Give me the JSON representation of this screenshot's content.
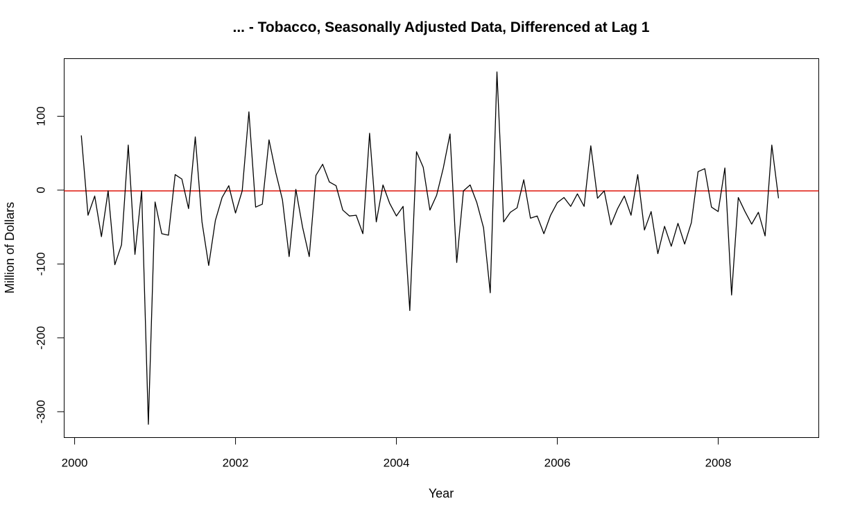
{
  "chart_data": {
    "type": "line",
    "title": "... - Tobacco, Seasonally Adjusted Data, Differenced at Lag 1",
    "xlabel": "Year",
    "ylabel": "Million of Dollars",
    "xlim": [
      1999.87,
      2009.25
    ],
    "ylim": [
      -335,
      178
    ],
    "x_ticks": [
      2000,
      2002,
      2004,
      2006,
      2008
    ],
    "y_ticks": [
      100,
      0,
      -100,
      -200,
      -300
    ],
    "x_tick_labels": [
      "2000",
      "2002",
      "2004",
      "2006",
      "2008"
    ],
    "y_tick_labels": [
      "100",
      "0",
      "-100",
      "-200",
      "-300"
    ],
    "grid": false,
    "legend": "none",
    "x_start": 2000.0833,
    "x_step": 0.08333,
    "series": [
      {
        "color": "#000000",
        "values": [
          74,
          -34,
          -8,
          -63,
          -1,
          -101,
          -74,
          61,
          -87,
          -1,
          -317,
          -16,
          -59,
          -61,
          21,
          15,
          -25,
          72,
          -43,
          -102,
          -41,
          -10,
          6,
          -31,
          -1,
          106,
          -23,
          -19,
          68,
          24,
          -13,
          -90,
          1,
          -50,
          -90,
          20,
          35,
          11,
          6,
          -27,
          -35,
          -34,
          -59,
          77,
          -43,
          7,
          -18,
          -35,
          -22,
          -163,
          52,
          31,
          -27,
          -7,
          30,
          76,
          -98,
          -1,
          7,
          -17,
          -51,
          -139,
          160,
          -43,
          -30,
          -24,
          14,
          -38,
          -35,
          -59,
          -34,
          -17,
          -10,
          -22,
          -5,
          -22,
          60,
          -11,
          -1,
          -47,
          -25,
          -8,
          -34,
          21,
          -54,
          -29,
          -86,
          -49,
          -76,
          -45,
          -73,
          -44,
          25,
          29,
          -23,
          -29,
          30,
          -142,
          -10,
          -29,
          -46,
          -30,
          -62,
          61,
          -11
        ]
      }
    ],
    "hline": {
      "y": -1,
      "color": "#e0261d"
    },
    "colors": {
      "line": "#000000",
      "reference_line": "#e0261d",
      "frame": "#000000"
    }
  }
}
